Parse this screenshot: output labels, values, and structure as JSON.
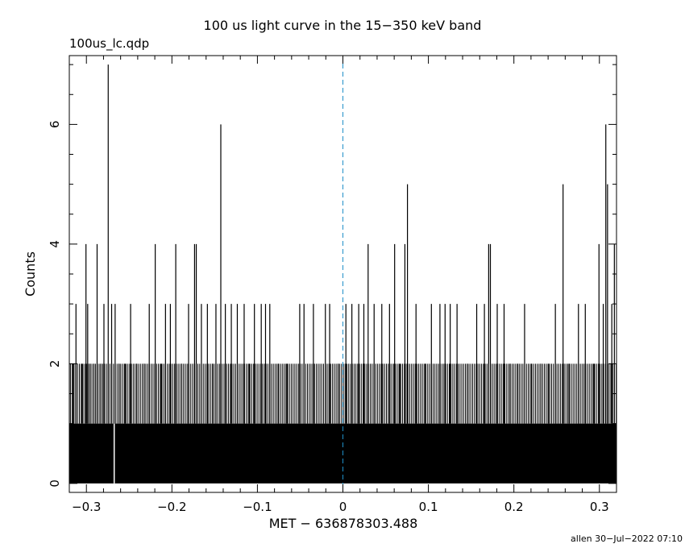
{
  "chart_data": {
    "type": "bar",
    "title": "100 us light curve in the 15−350 keV band",
    "subtitle": "100us_lc.qdp",
    "xlabel": "MET − 636878303.488",
    "ylabel": "Counts",
    "footer": "allen 30−Jul−2022 07:10",
    "xlim": [
      -0.32,
      0.32
    ],
    "ylim": [
      -0.15,
      7.15
    ],
    "x_ticks": [
      -0.3,
      -0.2,
      -0.1,
      0,
      0.1,
      0.2,
      0.3
    ],
    "x_tick_labels": [
      "−0.3",
      "−0.2",
      "−0.1",
      "0",
      "0.1",
      "0.2",
      "0.3"
    ],
    "y_ticks": [
      0,
      2,
      4,
      6
    ],
    "y_tick_labels": [
      "0",
      "2",
      "4",
      "6"
    ],
    "bin_width": 0.0001,
    "baseline_counts": 1,
    "reference_line": {
      "x": 0,
      "style": "dashed",
      "color": "#1f8fc8"
    },
    "gaps": [
      {
        "x": -0.2675,
        "counts": 0
      }
    ],
    "peaks": [
      {
        "x": -0.3155,
        "y": 2
      },
      {
        "x": -0.3122,
        "y": 3
      },
      {
        "x": -0.3051,
        "y": 2
      },
      {
        "x": -0.3005,
        "y": 4
      },
      {
        "x": -0.2985,
        "y": 3
      },
      {
        "x": -0.2958,
        "y": 2
      },
      {
        "x": -0.2912,
        "y": 2
      },
      {
        "x": -0.2875,
        "y": 4
      },
      {
        "x": -0.2831,
        "y": 2
      },
      {
        "x": -0.2795,
        "y": 3
      },
      {
        "x": -0.2745,
        "y": 7
      },
      {
        "x": -0.2705,
        "y": 3
      },
      {
        "x": -0.2664,
        "y": 3
      },
      {
        "x": -0.2618,
        "y": 2
      },
      {
        "x": -0.2548,
        "y": 2
      },
      {
        "x": -0.2483,
        "y": 3
      },
      {
        "x": -0.2412,
        "y": 2
      },
      {
        "x": -0.2325,
        "y": 2
      },
      {
        "x": -0.2265,
        "y": 3
      },
      {
        "x": -0.2195,
        "y": 4
      },
      {
        "x": -0.2125,
        "y": 2
      },
      {
        "x": -0.2075,
        "y": 3
      },
      {
        "x": -0.2018,
        "y": 3
      },
      {
        "x": -0.1955,
        "y": 4
      },
      {
        "x": -0.1885,
        "y": 2
      },
      {
        "x": -0.1805,
        "y": 3
      },
      {
        "x": -0.1735,
        "y": 4
      },
      {
        "x": -0.1715,
        "y": 4
      },
      {
        "x": -0.1655,
        "y": 3
      },
      {
        "x": -0.1585,
        "y": 3
      },
      {
        "x": -0.1525,
        "y": 2
      },
      {
        "x": -0.1485,
        "y": 3
      },
      {
        "x": -0.1428,
        "y": 6
      },
      {
        "x": -0.1375,
        "y": 3
      },
      {
        "x": -0.1305,
        "y": 3
      },
      {
        "x": -0.1235,
        "y": 3
      },
      {
        "x": -0.1155,
        "y": 3
      },
      {
        "x": -0.1095,
        "y": 2
      },
      {
        "x": -0.1035,
        "y": 3
      },
      {
        "x": -0.0955,
        "y": 3
      },
      {
        "x": -0.0905,
        "y": 3
      },
      {
        "x": -0.0855,
        "y": 3
      },
      {
        "x": -0.0755,
        "y": 2
      },
      {
        "x": -0.0655,
        "y": 2
      },
      {
        "x": -0.0505,
        "y": 3
      },
      {
        "x": -0.0455,
        "y": 3
      },
      {
        "x": -0.0345,
        "y": 3
      },
      {
        "x": -0.0205,
        "y": 3
      },
      {
        "x": -0.0155,
        "y": 3
      },
      {
        "x": -0.0055,
        "y": 2
      },
      {
        "x": 0.0035,
        "y": 3
      },
      {
        "x": 0.0105,
        "y": 3
      },
      {
        "x": 0.0185,
        "y": 3
      },
      {
        "x": 0.0245,
        "y": 3
      },
      {
        "x": 0.0295,
        "y": 4
      },
      {
        "x": 0.0365,
        "y": 3
      },
      {
        "x": 0.0455,
        "y": 3
      },
      {
        "x": 0.0545,
        "y": 3
      },
      {
        "x": 0.0605,
        "y": 4
      },
      {
        "x": 0.0665,
        "y": 2
      },
      {
        "x": 0.0725,
        "y": 4
      },
      {
        "x": 0.0755,
        "y": 5
      },
      {
        "x": 0.0855,
        "y": 3
      },
      {
        "x": 0.0965,
        "y": 2
      },
      {
        "x": 0.1035,
        "y": 3
      },
      {
        "x": 0.1135,
        "y": 3
      },
      {
        "x": 0.1195,
        "y": 3
      },
      {
        "x": 0.1255,
        "y": 3
      },
      {
        "x": 0.1335,
        "y": 3
      },
      {
        "x": 0.1455,
        "y": 2
      },
      {
        "x": 0.1565,
        "y": 3
      },
      {
        "x": 0.1655,
        "y": 3
      },
      {
        "x": 0.1705,
        "y": 4
      },
      {
        "x": 0.1725,
        "y": 4
      },
      {
        "x": 0.1805,
        "y": 3
      },
      {
        "x": 0.1885,
        "y": 3
      },
      {
        "x": 0.1955,
        "y": 2
      },
      {
        "x": 0.2045,
        "y": 2
      },
      {
        "x": 0.2125,
        "y": 3
      },
      {
        "x": 0.2205,
        "y": 2
      },
      {
        "x": 0.2315,
        "y": 2
      },
      {
        "x": 0.2405,
        "y": 2
      },
      {
        "x": 0.2485,
        "y": 3
      },
      {
        "x": 0.2575,
        "y": 5
      },
      {
        "x": 0.2645,
        "y": 2
      },
      {
        "x": 0.2755,
        "y": 3
      },
      {
        "x": 0.2835,
        "y": 3
      },
      {
        "x": 0.2935,
        "y": 2
      },
      {
        "x": 0.2995,
        "y": 4
      },
      {
        "x": 0.3045,
        "y": 3
      },
      {
        "x": 0.3075,
        "y": 6
      },
      {
        "x": 0.3095,
        "y": 5
      },
      {
        "x": 0.3145,
        "y": 3
      },
      {
        "x": 0.3175,
        "y": 4
      }
    ]
  }
}
